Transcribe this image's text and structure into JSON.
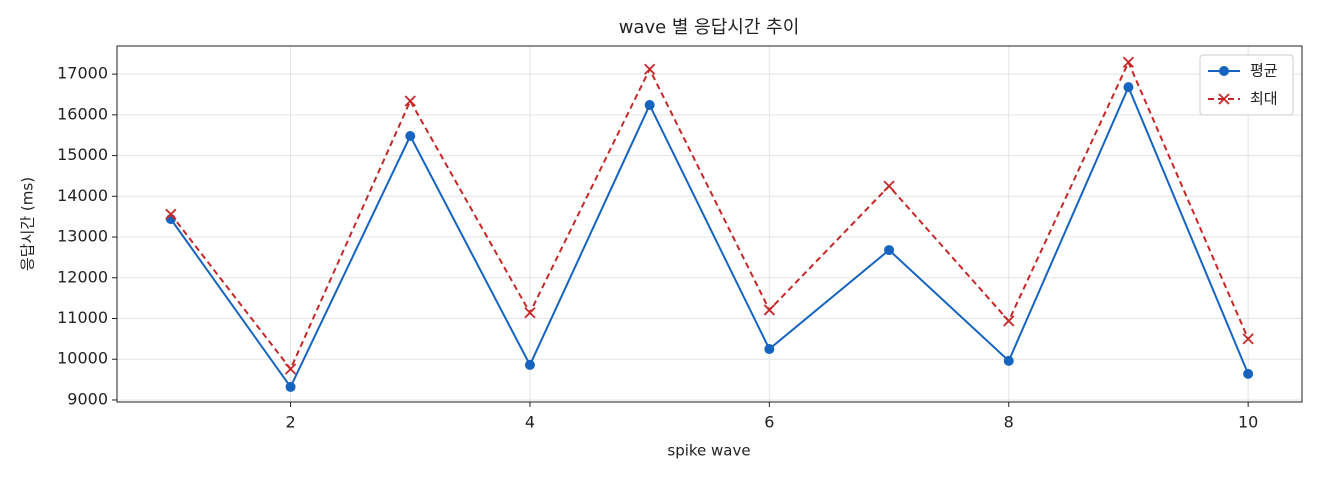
{
  "chart_data": {
    "type": "line",
    "title": "wave 별 응답시간 추이",
    "xlabel": "spike wave",
    "ylabel": "응답시간 (ms)",
    "x": [
      1,
      2,
      3,
      4,
      5,
      6,
      7,
      8,
      9,
      10
    ],
    "series": [
      {
        "name": "평균",
        "color": "#1565c0",
        "marker": "circle",
        "dash": false,
        "values": [
          13440,
          9320,
          15480,
          9860,
          16240,
          10250,
          12680,
          9960,
          16680,
          9640
        ]
      },
      {
        "name": "최대",
        "color": "#c62828",
        "marker": "x",
        "dash": true,
        "values": [
          13560,
          9760,
          16340,
          11140,
          17120,
          11210,
          14250,
          10940,
          17290,
          10500
        ]
      }
    ],
    "xlim": [
      0.55,
      10.45
    ],
    "xticks": [
      2,
      4,
      6,
      8,
      10
    ],
    "ylim": [
      8950,
      17690
    ],
    "yticks": [
      9000,
      10000,
      11000,
      12000,
      13000,
      14000,
      15000,
      16000,
      17000
    ],
    "grid": true,
    "legend": "upper right"
  }
}
